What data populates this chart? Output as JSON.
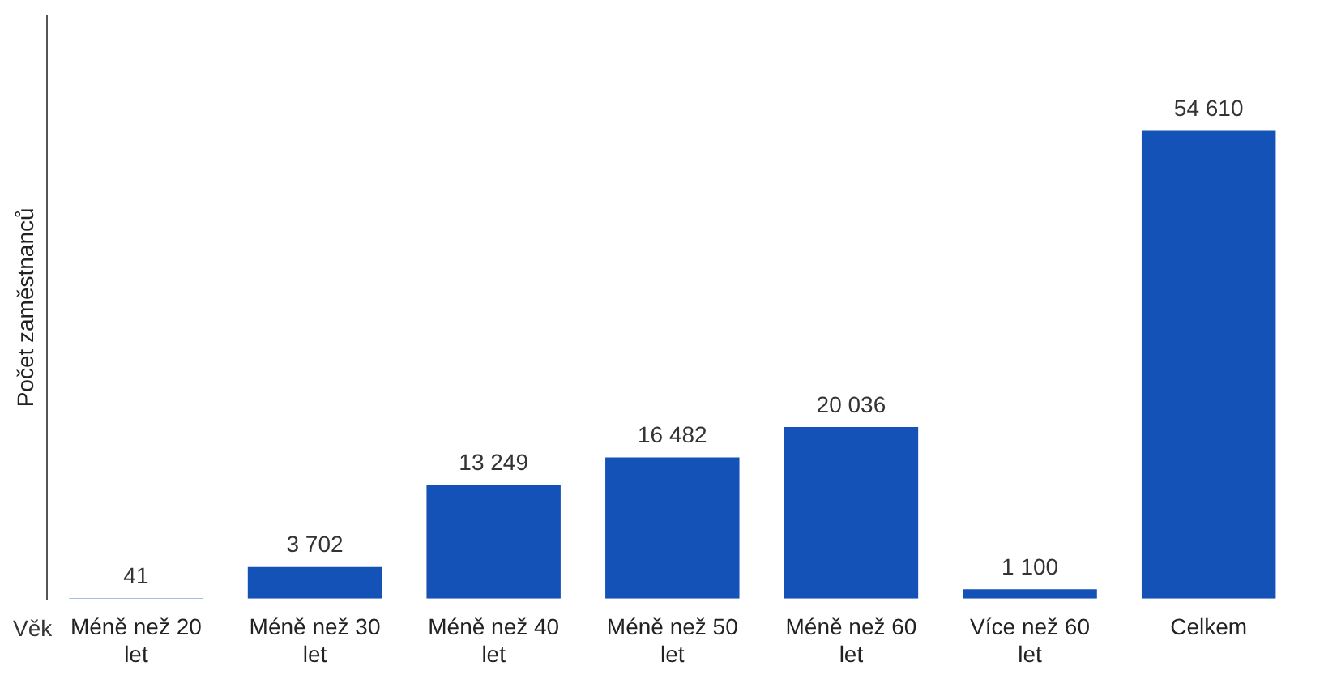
{
  "chart_data": {
    "type": "bar",
    "xlabel": "Věk",
    "ylabel": "Počet zaměstnanců",
    "categories": [
      "Méně než 20 let",
      "Méně než 30 let",
      "Méně než 40 let",
      "Méně než 50 let",
      "Méně než 60 let",
      "Více než 60 let",
      "Celkem"
    ],
    "values": [
      41,
      3702,
      13249,
      16482,
      20036,
      1100,
      54610
    ],
    "value_labels": [
      "41",
      "3 702",
      "13 249",
      "16 482",
      "20 036",
      "1 100",
      "54 610"
    ],
    "color": "#1452b8",
    "ylim": [
      0,
      68000
    ],
    "tick_labels": "x",
    "grid": false,
    "legend": false
  }
}
